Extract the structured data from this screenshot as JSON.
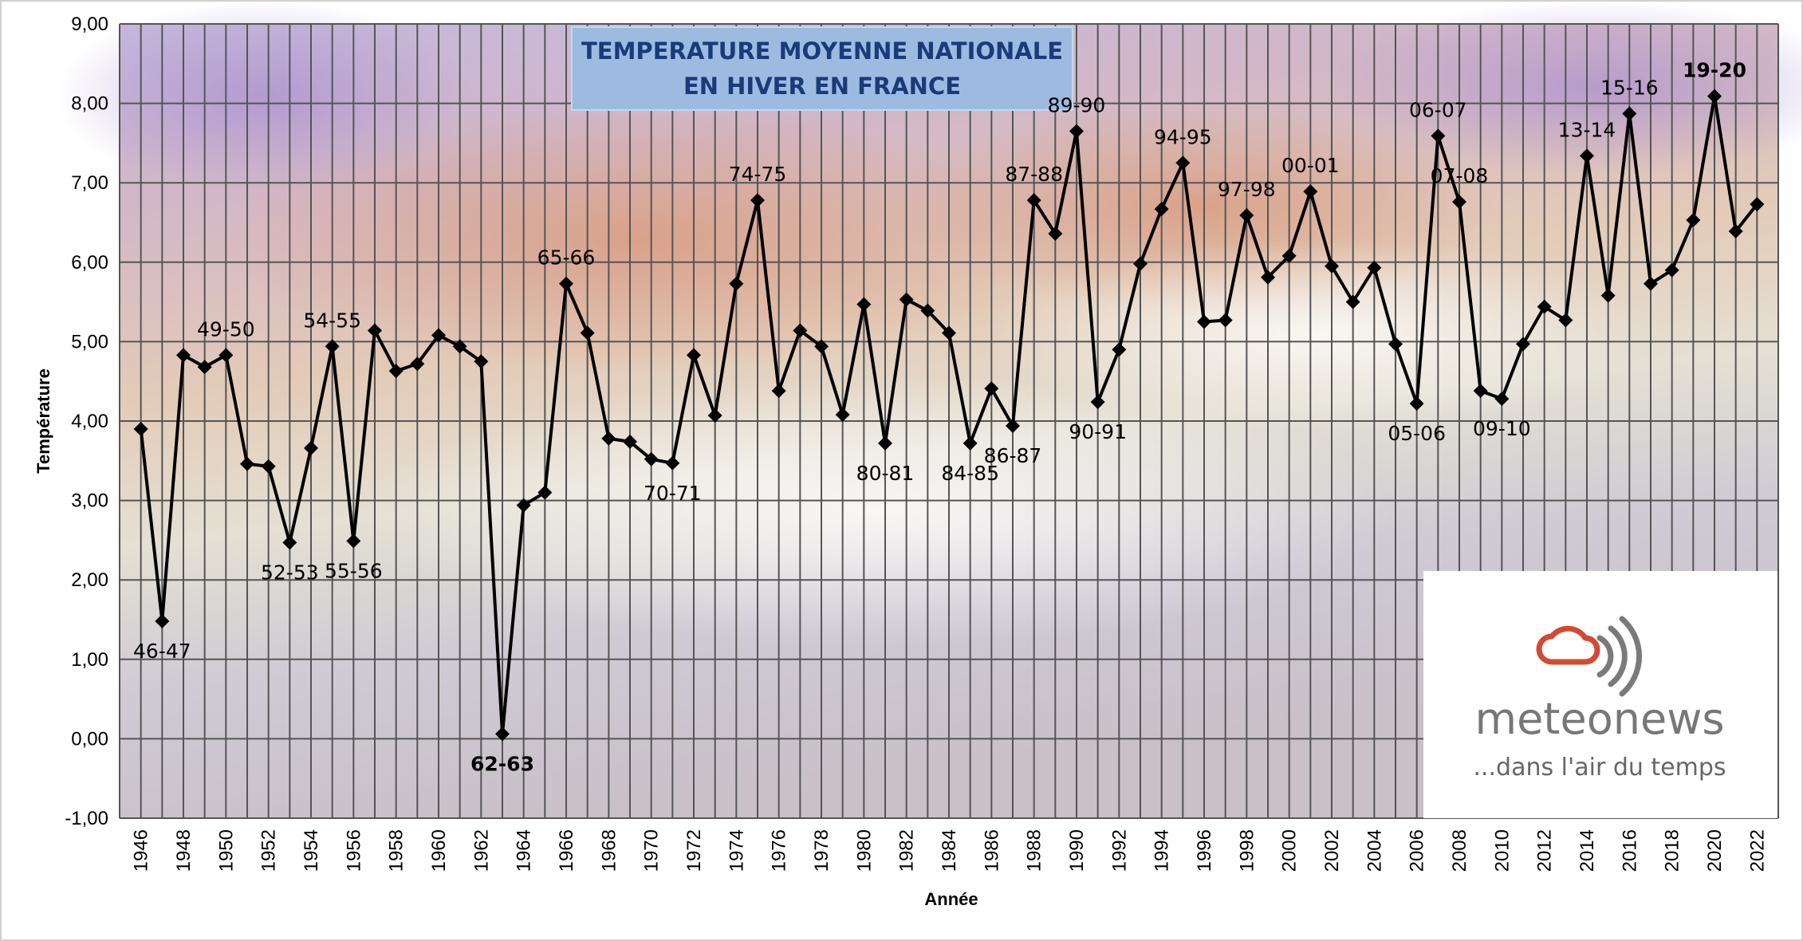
{
  "colors": {
    "line": "#000000",
    "grid": "#555555",
    "title_box": "#9dbbe0",
    "title_text": "#1a3a7a",
    "highlight_cold": "#2b3fe0",
    "highlight_warm": "#e00000",
    "logo_cloud": "#d24a34",
    "logo_waves": "#7a7a7a"
  },
  "logo": {
    "name": "meteonews",
    "tagline": "...dans l'air du temps",
    "icon": "cloud-signal-icon"
  },
  "chart_data": {
    "type": "line",
    "title_lines": [
      "TEMPERATURE MOYENNE NATIONALE",
      "EN HIVER EN FRANCE"
    ],
    "xlabel": "Année",
    "ylabel": "Température",
    "ylim": [
      -1,
      9
    ],
    "ytick_step": 1,
    "yticks": [
      "-1,00",
      "0,00",
      "1,00",
      "2,00",
      "3,00",
      "4,00",
      "5,00",
      "6,00",
      "7,00",
      "8,00",
      "9,00"
    ],
    "xlim": [
      1946,
      2022
    ],
    "x_tick_labels": [
      "1946",
      "1948",
      "1950",
      "1952",
      "1954",
      "1956",
      "1958",
      "1960",
      "1962",
      "1964",
      "1966",
      "1968",
      "1970",
      "1972",
      "1974",
      "1976",
      "1978",
      "1980",
      "1982",
      "1984",
      "1986",
      "1988",
      "1990",
      "1992",
      "1994",
      "1996",
      "1998",
      "2000",
      "2002",
      "2004",
      "2006",
      "2008",
      "2010",
      "2012",
      "2014",
      "2016",
      "2018",
      "2020",
      "2022"
    ],
    "grid": true,
    "x": [
      1946,
      1947,
      1948,
      1949,
      1950,
      1951,
      1952,
      1953,
      1954,
      1955,
      1956,
      1957,
      1958,
      1959,
      1960,
      1961,
      1962,
      1963,
      1964,
      1965,
      1966,
      1967,
      1968,
      1969,
      1970,
      1971,
      1972,
      1973,
      1974,
      1975,
      1976,
      1977,
      1978,
      1979,
      1980,
      1981,
      1982,
      1983,
      1984,
      1985,
      1986,
      1987,
      1988,
      1989,
      1990,
      1991,
      1992,
      1993,
      1994,
      1995,
      1996,
      1997,
      1998,
      1999,
      2000,
      2001,
      2002,
      2003,
      2004,
      2005,
      2006,
      2007,
      2008,
      2009,
      2010,
      2011,
      2012,
      2013,
      2014,
      2015,
      2016,
      2017,
      2018,
      2019,
      2020,
      2021,
      2022
    ],
    "values": [
      3.9,
      1.48,
      4.83,
      4.68,
      4.83,
      3.46,
      3.43,
      2.47,
      3.66,
      4.94,
      2.49,
      5.14,
      4.63,
      4.72,
      5.08,
      4.94,
      4.75,
      0.06,
      2.94,
      3.1,
      5.73,
      5.11,
      3.78,
      3.74,
      3.52,
      3.47,
      4.83,
      4.07,
      5.73,
      6.78,
      4.38,
      5.14,
      4.94,
      4.08,
      5.47,
      3.72,
      5.53,
      5.39,
      5.11,
      3.72,
      4.41,
      3.94,
      6.78,
      6.36,
      7.65,
      4.24,
      4.9,
      5.98,
      6.67,
      7.25,
      5.25,
      5.27,
      6.59,
      5.81,
      6.08,
      6.89,
      5.95,
      5.5,
      5.93,
      4.97,
      4.22,
      7.59,
      6.76,
      4.38,
      4.28,
      4.97,
      5.44,
      5.27,
      7.34,
      5.58,
      7.87,
      5.73,
      5.9,
      6.53,
      8.09,
      6.39,
      6.73
    ],
    "annotations": [
      {
        "text": "46-47",
        "x": 1947,
        "y": 1.48,
        "pos": "below"
      },
      {
        "text": "49-50",
        "x": 1950,
        "y": 4.83,
        "pos": "above"
      },
      {
        "text": "52-53",
        "x": 1953,
        "y": 2.47,
        "pos": "below"
      },
      {
        "text": "54-55",
        "x": 1955,
        "y": 4.94,
        "pos": "above"
      },
      {
        "text": "55-56",
        "x": 1956,
        "y": 2.49,
        "pos": "below"
      },
      {
        "text": "62-63",
        "x": 1963,
        "y": 0.06,
        "pos": "below",
        "style": "cold"
      },
      {
        "text": "65-66",
        "x": 1966,
        "y": 5.73,
        "pos": "above"
      },
      {
        "text": "70-71",
        "x": 1971,
        "y": 3.47,
        "pos": "below"
      },
      {
        "text": "74-75",
        "x": 1975,
        "y": 6.78,
        "pos": "above"
      },
      {
        "text": "80-81",
        "x": 1981,
        "y": 3.72,
        "pos": "below"
      },
      {
        "text": "84-85",
        "x": 1985,
        "y": 3.72,
        "pos": "below"
      },
      {
        "text": "86-87",
        "x": 1987,
        "y": 3.94,
        "pos": "below"
      },
      {
        "text": "87-88",
        "x": 1988,
        "y": 6.78,
        "pos": "above"
      },
      {
        "text": "89-90",
        "x": 1990,
        "y": 7.65,
        "pos": "above"
      },
      {
        "text": "90-91",
        "x": 1991,
        "y": 4.24,
        "pos": "below"
      },
      {
        "text": "94-95",
        "x": 1995,
        "y": 7.25,
        "pos": "above"
      },
      {
        "text": "97-98",
        "x": 1998,
        "y": 6.59,
        "pos": "above"
      },
      {
        "text": "00-01",
        "x": 2001,
        "y": 6.89,
        "pos": "above"
      },
      {
        "text": "05-06",
        "x": 2006,
        "y": 4.22,
        "pos": "below"
      },
      {
        "text": "06-07",
        "x": 2007,
        "y": 7.59,
        "pos": "above"
      },
      {
        "text": "07-08",
        "x": 2008,
        "y": 6.76,
        "pos": "above"
      },
      {
        "text": "09-10",
        "x": 2010,
        "y": 4.28,
        "pos": "below"
      },
      {
        "text": "13-14",
        "x": 2014,
        "y": 7.34,
        "pos": "above"
      },
      {
        "text": "15-16",
        "x": 2016,
        "y": 7.87,
        "pos": "above"
      },
      {
        "text": "19-20",
        "x": 2020,
        "y": 8.09,
        "pos": "above",
        "style": "warm"
      }
    ]
  }
}
